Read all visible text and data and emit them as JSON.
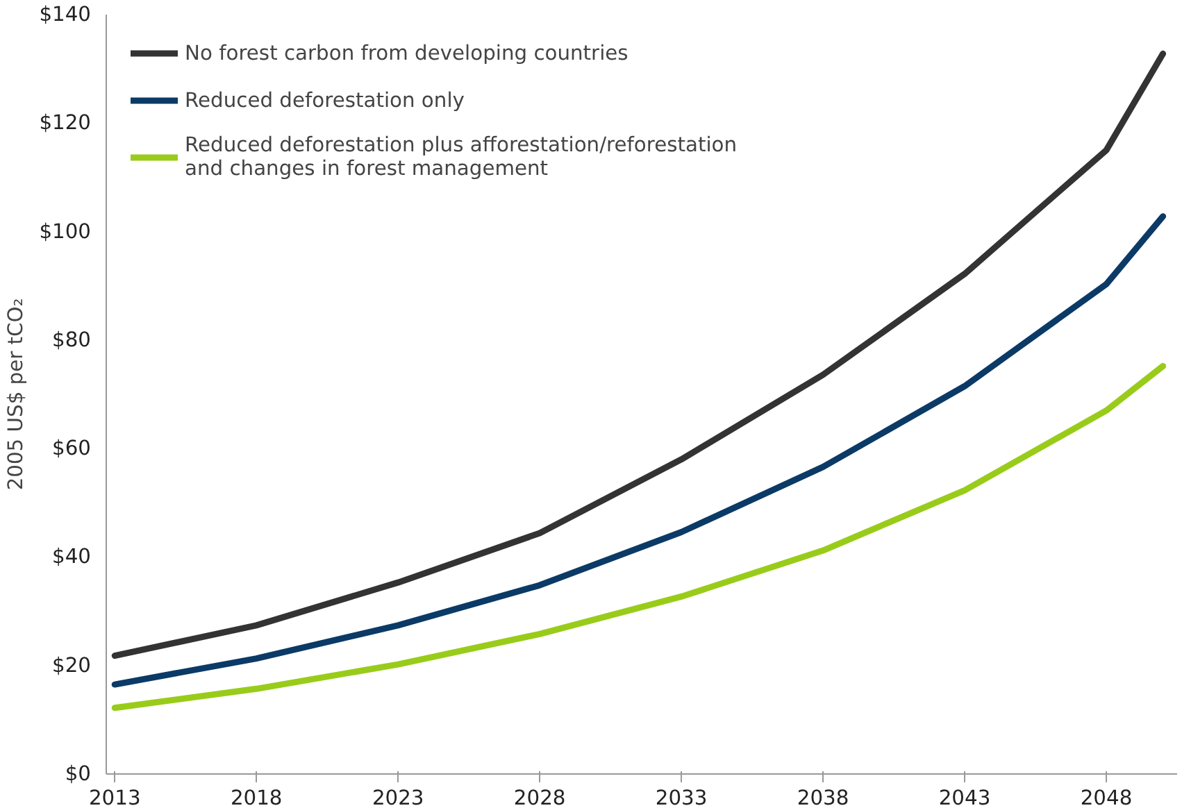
{
  "chart_data": {
    "type": "line",
    "ylabel": "2005 US$ per tCO₂",
    "x": [
      2013,
      2018,
      2023,
      2028,
      2033,
      2038,
      2043,
      2048,
      2050
    ],
    "series": [
      {
        "name": "No forest carbon from developing countries",
        "color": "#333333",
        "values": [
          21.8,
          27.4,
          35.3,
          44.4,
          58,
          73.6,
          92.2,
          115,
          132.8
        ]
      },
      {
        "name": "Reduced deforestation only",
        "color": "#0b3a66",
        "values": [
          16.5,
          21.3,
          27.4,
          34.8,
          44.6,
          56.6,
          71.5,
          90.3,
          102.8
        ]
      },
      {
        "name": "Reduced deforestation plus afforestation/reforestation and changes in forest management",
        "color": "#99cc1a",
        "values": [
          12.2,
          15.7,
          20.2,
          25.8,
          32.7,
          41.2,
          52.3,
          67,
          75.2
        ]
      }
    ],
    "xlim": [
      2012.7,
      2050.5
    ],
    "ylim": [
      0,
      140
    ],
    "xticks": [
      2013,
      2018,
      2023,
      2028,
      2033,
      2038,
      2043,
      2048
    ],
    "yticks": [
      {
        "value": 0,
        "label": "$0"
      },
      {
        "value": 20,
        "label": "$20"
      },
      {
        "value": 40,
        "label": "$40"
      },
      {
        "value": 60,
        "label": "$60"
      },
      {
        "value": 80,
        "label": "$80"
      },
      {
        "value": 100,
        "label": "$100"
      },
      {
        "value": 120,
        "label": "$120"
      },
      {
        "value": 140,
        "label": "$140"
      }
    ],
    "grid": false,
    "legend": "top left",
    "marker": "none",
    "line_style": "solid"
  }
}
